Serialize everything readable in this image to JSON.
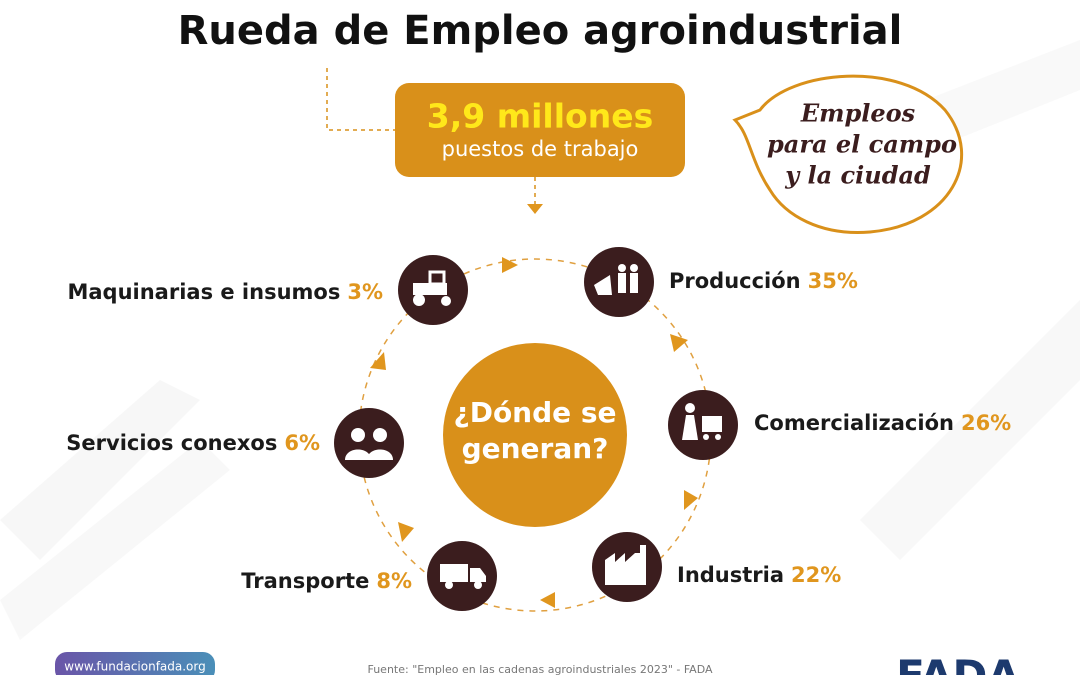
{
  "header": {
    "title": "Rueda de Empleo agroindustrial"
  },
  "highlight": {
    "value": "3,9 millones",
    "label": "puestos de trabajo"
  },
  "bubble": {
    "lines": [
      "Empleos",
      "para el campo",
      "y la ciudad"
    ]
  },
  "center": {
    "lines": [
      "¿Dónde se",
      "generan?"
    ]
  },
  "nodes": [
    {
      "label": "Maquinarias e insumos",
      "share": "3%"
    },
    {
      "label": "Producción",
      "share": "35%"
    },
    {
      "label": "Comercialización",
      "share": "26%"
    },
    {
      "label": "Industria",
      "share": "22%"
    },
    {
      "label": "Transporte",
      "share": "8%"
    },
    {
      "label": "Servicios conexos",
      "share": "6%"
    }
  ],
  "footer": {
    "website": "www.fundacionfada.org",
    "source": "Fuente: \"Empleo en las cadenas agroindustriales 2023\" - FADA",
    "logo": "FADA"
  }
}
